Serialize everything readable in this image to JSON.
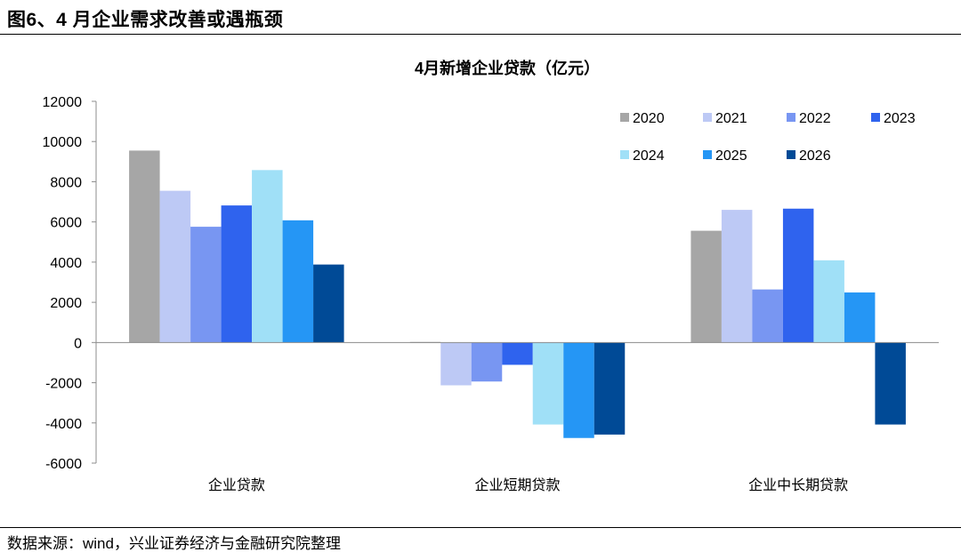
{
  "figure_title": "图6、4 月企业需求改善或遇瓶颈",
  "source_note": "数据来源：wind，兴业证券经济与金融研究院整理",
  "chart_data": {
    "type": "bar",
    "title": "4月新增企业贷款（亿元）",
    "categories": [
      "企业贷款",
      "企业短期贷款",
      "企业中长期贷款"
    ],
    "series": [
      {
        "name": "2020",
        "color": "#a6a6a6",
        "values": [
          9550,
          0,
          5560
        ]
      },
      {
        "name": "2021",
        "color": "#bdc9f5",
        "values": [
          7550,
          -2130,
          6600
        ]
      },
      {
        "name": "2022",
        "color": "#7896f2",
        "values": [
          5760,
          -1940,
          2640
        ]
      },
      {
        "name": "2023",
        "color": "#2f63ee",
        "values": [
          6820,
          -1110,
          6660
        ]
      },
      {
        "name": "2024",
        "color": "#a0e0f7",
        "values": [
          8580,
          -4080,
          4090
        ]
      },
      {
        "name": "2025",
        "color": "#2596f5",
        "values": [
          6080,
          -4750,
          2490
        ]
      },
      {
        "name": "2026",
        "color": "#004a96",
        "values": [
          3880,
          -4580,
          -4080
        ]
      }
    ],
    "ylim": [
      -6000,
      12000
    ],
    "yticks": [
      12000,
      10000,
      8000,
      6000,
      4000,
      2000,
      0,
      -2000,
      -4000,
      -6000
    ],
    "legend_position": "top-right",
    "grid": false
  }
}
